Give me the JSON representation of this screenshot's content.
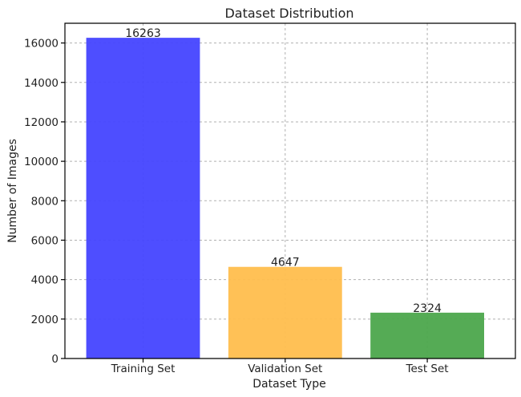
{
  "chart_data": {
    "type": "bar",
    "title": "Dataset Distribution",
    "xlabel": "Dataset Type",
    "ylabel": "Number of Images",
    "categories": [
      "Training Set",
      "Validation Set",
      "Test Set"
    ],
    "values": [
      16263,
      4647,
      2324
    ],
    "data_labels": [
      "16263",
      "4647",
      "2324"
    ],
    "colors": [
      "#4444ff",
      "#ffbe4d",
      "#4ca64c"
    ],
    "ylim": [
      0,
      17000
    ],
    "yticks": [
      0,
      2000,
      4000,
      6000,
      8000,
      10000,
      12000,
      14000,
      16000
    ],
    "ytick_labels": [
      "0",
      "2000",
      "4000",
      "6000",
      "8000",
      "10000",
      "12000",
      "14000",
      "16000"
    ],
    "grid": true,
    "legend": "none"
  }
}
